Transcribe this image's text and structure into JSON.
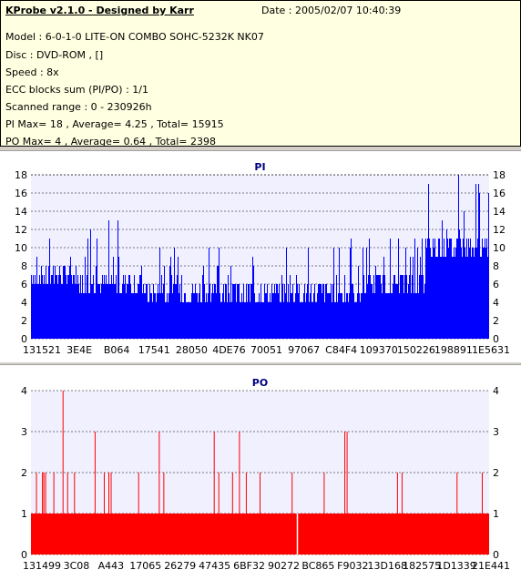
{
  "info": {
    "title": "KProbe v2.1.0 - Designed by Karr",
    "date": "Date : 2005/02/07 10:40:39",
    "model": "Model : 6-0-1-0 LITE-ON COMBO SOHC-5232K NK07",
    "disc": "Disc : DVD-ROM ,  []",
    "speed": "Speed : 8x",
    "ecc": "ECC blocks sum (PI/PO) : 1/1",
    "range": "Scanned range : 0 - 230926h",
    "pi_stats": "PI Max= 18 , Average= 4.25 , Total= 15915",
    "po_stats": "PO Max= 4 , Average= 0.64 , Total= 2398"
  },
  "colors": {
    "pi": "#0000ff",
    "po": "#ff0000",
    "plot_bg": "#f0f0ff",
    "title": "#000080"
  },
  "chart_data": [
    {
      "type": "bar",
      "title": "PI",
      "ylim": [
        0,
        18
      ],
      "yticks": [
        0,
        2,
        4,
        6,
        8,
        10,
        12,
        14,
        16,
        18
      ],
      "xticklabels": [
        "131521",
        "3E4E",
        "B064",
        "17541",
        "28050",
        "4DE76",
        "70051",
        "97067",
        "C84F4",
        "109370",
        "150226",
        "198891",
        "1E5631"
      ],
      "grid": true,
      "description_points": {
        "segments": [
          {
            "from": 0.0,
            "to": 0.1,
            "base": 6,
            "spike": 11
          },
          {
            "from": 0.1,
            "to": 0.25,
            "base": 5,
            "spike": 13
          },
          {
            "from": 0.25,
            "to": 0.5,
            "base": 4,
            "spike": 10
          },
          {
            "from": 0.5,
            "to": 0.72,
            "base": 4,
            "spike": 11
          },
          {
            "from": 0.72,
            "to": 0.86,
            "base": 5,
            "spike": 11
          },
          {
            "from": 0.86,
            "to": 1.0,
            "base": 9,
            "spike": 18
          }
        ],
        "max": 18
      }
    },
    {
      "type": "bar",
      "title": "PO",
      "ylim": [
        0,
        4
      ],
      "yticks": [
        0,
        1,
        2,
        3,
        4
      ],
      "xticklabels": [
        "131499",
        "3C08",
        "A443",
        "17065",
        "26279",
        "47435",
        "6BF32",
        "90272",
        "BC865",
        "F9032",
        "13D168",
        "182575",
        "1D1339",
        "21E441"
      ],
      "grid": true,
      "baseline": 1,
      "spikes": [
        {
          "pos": 0.012,
          "v": 2
        },
        {
          "pos": 0.025,
          "v": 2
        },
        {
          "pos": 0.028,
          "v": 2
        },
        {
          "pos": 0.032,
          "v": 2
        },
        {
          "pos": 0.05,
          "v": 2
        },
        {
          "pos": 0.07,
          "v": 4
        },
        {
          "pos": 0.08,
          "v": 2
        },
        {
          "pos": 0.095,
          "v": 2
        },
        {
          "pos": 0.14,
          "v": 3
        },
        {
          "pos": 0.16,
          "v": 2
        },
        {
          "pos": 0.17,
          "v": 2
        },
        {
          "pos": 0.175,
          "v": 2
        },
        {
          "pos": 0.235,
          "v": 2
        },
        {
          "pos": 0.28,
          "v": 3
        },
        {
          "pos": 0.29,
          "v": 2
        },
        {
          "pos": 0.4,
          "v": 3
        },
        {
          "pos": 0.41,
          "v": 2
        },
        {
          "pos": 0.44,
          "v": 2
        },
        {
          "pos": 0.455,
          "v": 3
        },
        {
          "pos": 0.47,
          "v": 2
        },
        {
          "pos": 0.5,
          "v": 2
        },
        {
          "pos": 0.57,
          "v": 2
        },
        {
          "pos": 0.64,
          "v": 2
        },
        {
          "pos": 0.685,
          "v": 3
        },
        {
          "pos": 0.69,
          "v": 3
        },
        {
          "pos": 0.8,
          "v": 2
        },
        {
          "pos": 0.81,
          "v": 2
        },
        {
          "pos": 0.93,
          "v": 2
        },
        {
          "pos": 0.985,
          "v": 2
        }
      ],
      "gaps": [
        0.58
      ]
    }
  ]
}
